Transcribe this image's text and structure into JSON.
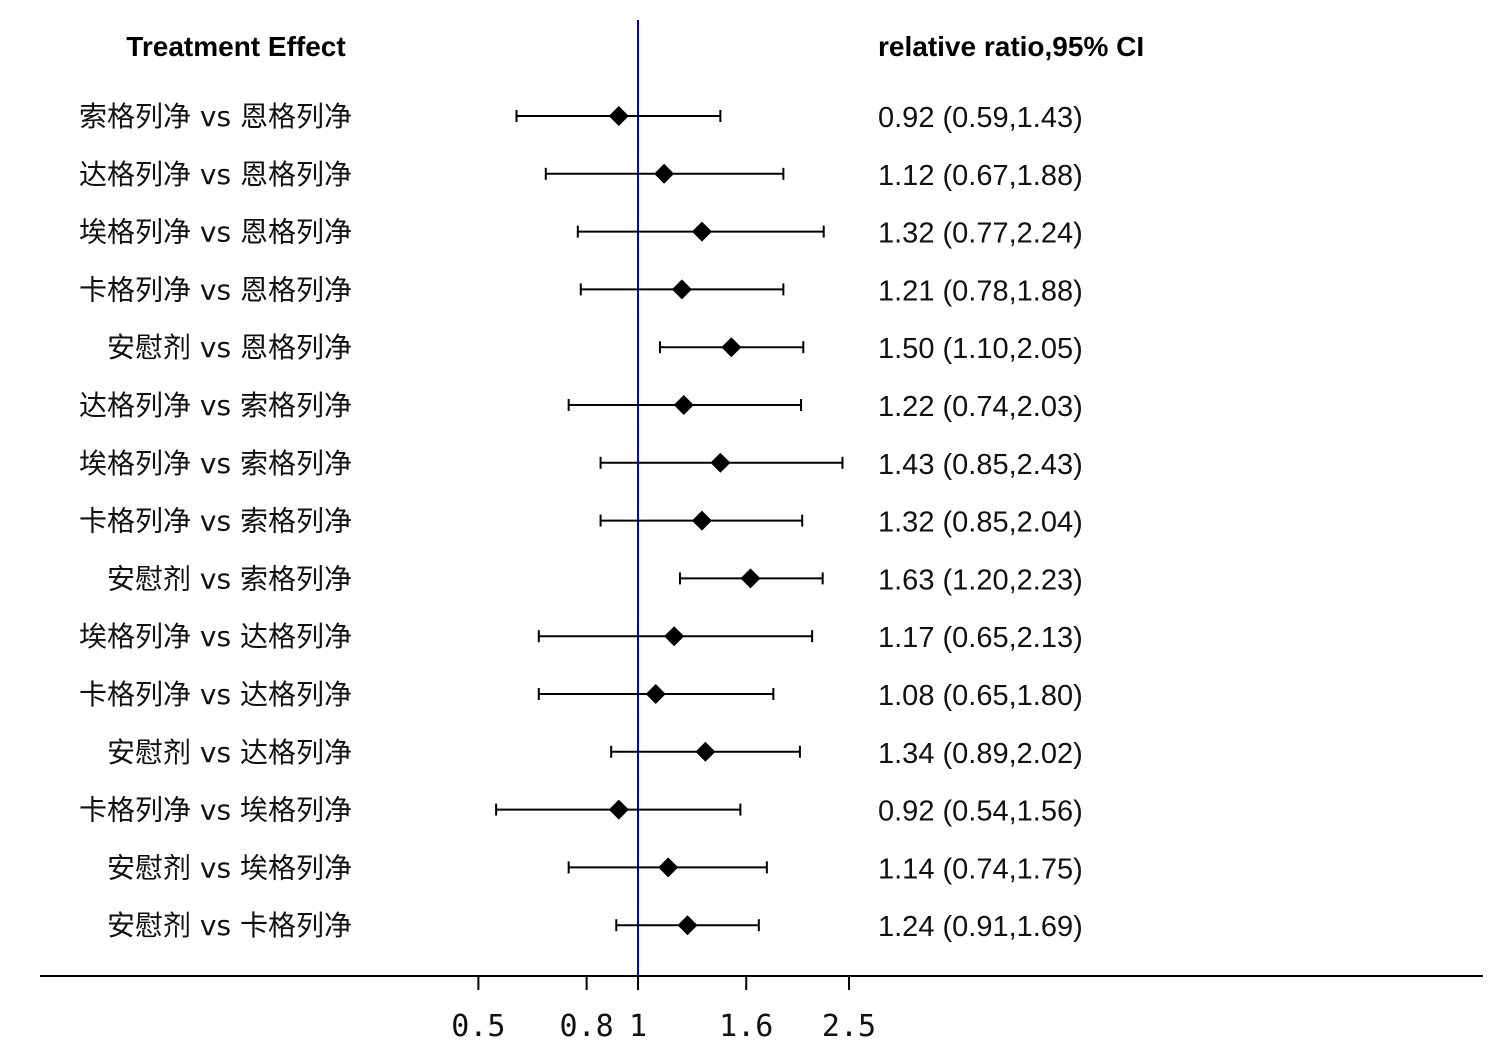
{
  "chart_data": {
    "type": "forest",
    "left_header": "Treatment Effect",
    "right_header": "relative ratio,95% CI",
    "x_scale": "log",
    "xlim": [
      0.4,
      5.0
    ],
    "reference_value": 1,
    "reference_color": "#0000cc",
    "x_ticks": [
      0.5,
      0.8,
      1,
      1.6,
      2.5
    ],
    "x_tick_labels": [
      "0.5",
      "0.8",
      "1",
      "1.6",
      "2.5"
    ],
    "rows": [
      {
        "label": "索格列净 vs 恩格列净",
        "estimate": 0.92,
        "lower": 0.59,
        "upper": 1.43,
        "text": "0.92 (0.59,1.43)"
      },
      {
        "label": "达格列净 vs 恩格列净",
        "estimate": 1.12,
        "lower": 0.67,
        "upper": 1.88,
        "text": "1.12 (0.67,1.88)"
      },
      {
        "label": "埃格列净 vs 恩格列净",
        "estimate": 1.32,
        "lower": 0.77,
        "upper": 2.24,
        "text": "1.32 (0.77,2.24)"
      },
      {
        "label": "卡格列净 vs 恩格列净",
        "estimate": 1.21,
        "lower": 0.78,
        "upper": 1.88,
        "text": "1.21 (0.78,1.88)"
      },
      {
        "label": "安慰剂 vs 恩格列净",
        "estimate": 1.5,
        "lower": 1.1,
        "upper": 2.05,
        "text": "1.50 (1.10,2.05)"
      },
      {
        "label": "达格列净 vs 索格列净",
        "estimate": 1.22,
        "lower": 0.74,
        "upper": 2.03,
        "text": "1.22 (0.74,2.03)"
      },
      {
        "label": "埃格列净 vs 索格列净",
        "estimate": 1.43,
        "lower": 0.85,
        "upper": 2.43,
        "text": "1.43 (0.85,2.43)"
      },
      {
        "label": "卡格列净 vs 索格列净",
        "estimate": 1.32,
        "lower": 0.85,
        "upper": 2.04,
        "text": "1.32 (0.85,2.04)"
      },
      {
        "label": "安慰剂 vs 索格列净",
        "estimate": 1.63,
        "lower": 1.2,
        "upper": 2.23,
        "text": "1.63 (1.20,2.23)"
      },
      {
        "label": "埃格列净 vs 达格列净",
        "estimate": 1.17,
        "lower": 0.65,
        "upper": 2.13,
        "text": "1.17 (0.65,2.13)"
      },
      {
        "label": "卡格列净 vs 达格列净",
        "estimate": 1.08,
        "lower": 0.65,
        "upper": 1.8,
        "text": "1.08 (0.65,1.80)"
      },
      {
        "label": "安慰剂 vs 达格列净",
        "estimate": 1.34,
        "lower": 0.89,
        "upper": 2.02,
        "text": "1.34 (0.89,2.02)"
      },
      {
        "label": "卡格列净 vs 埃格列净",
        "estimate": 0.92,
        "lower": 0.54,
        "upper": 1.56,
        "text": "0.92 (0.54,1.56)"
      },
      {
        "label": "安慰剂 vs 埃格列净",
        "estimate": 1.14,
        "lower": 0.74,
        "upper": 1.75,
        "text": "1.14 (0.74,1.75)"
      },
      {
        "label": "安慰剂 vs 卡格列净",
        "estimate": 1.24,
        "lower": 0.91,
        "upper": 1.69,
        "text": "1.24 (0.91,1.69)"
      }
    ]
  }
}
